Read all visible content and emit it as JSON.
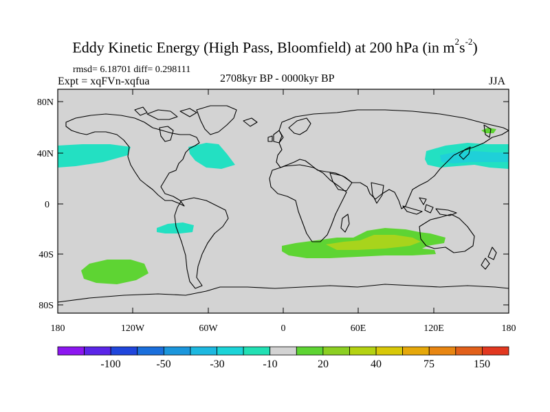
{
  "title": {
    "main": "Eddy Kinetic Energy (High Pass, Bloomfield) at 200 hPa (in m",
    "sup1": "2",
    "mid": "s",
    "sup2": "-2",
    "end": ")"
  },
  "stats": {
    "rmsd_diff": "rmsd= 6.18701 diff= 0.298111",
    "expt": "Expt = xqFVn-xqfua"
  },
  "period": "2708kyr BP - 0000kyr BP",
  "season": "JJA",
  "map": {
    "lat_ticks": [
      "80N",
      "40N",
      "0",
      "40S",
      "80S"
    ],
    "lon_ticks": [
      "180",
      "120W",
      "60W",
      "0",
      "60E",
      "120E",
      "180"
    ],
    "land_ocean_color": "#d3d3d3"
  },
  "colorbar": {
    "colors": [
      "#8c16f0",
      "#5b25e8",
      "#2046dc",
      "#1a6fdc",
      "#1b96dc",
      "#1db8e0",
      "#1cd4d8",
      "#22e0b4",
      "#d3d3d3",
      "#5ed433",
      "#8ccf22",
      "#b4d212",
      "#d8c808",
      "#e6a80a",
      "#e88612",
      "#e2601a",
      "#e23820"
    ],
    "labels": [
      "-100",
      "-50",
      "-30",
      "-10",
      "20",
      "40",
      "75",
      "150"
    ]
  },
  "anomalies": [
    {
      "name": "north-pacific-east",
      "category": "cyan",
      "color": "#23e0c2"
    },
    {
      "name": "north-atlantic",
      "category": "cyan",
      "color": "#23e0c2"
    },
    {
      "name": "north-pacific-west",
      "category": "cyan",
      "color": "#23e0c2"
    },
    {
      "name": "east-asia-core",
      "category": "teal",
      "color": "#1fd0d8"
    },
    {
      "name": "south-pacific-cyan",
      "category": "cyan",
      "color": "#23e0c2"
    },
    {
      "name": "south-pacific-green",
      "category": "green",
      "color": "#5ed433"
    },
    {
      "name": "southern-indian-ocean",
      "category": "green",
      "color": "#5ed433"
    },
    {
      "name": "southern-indian-core",
      "category": "yellow-green",
      "color": "#a8d41c"
    },
    {
      "name": "kamchatka-green",
      "category": "green",
      "color": "#5ed433"
    }
  ]
}
